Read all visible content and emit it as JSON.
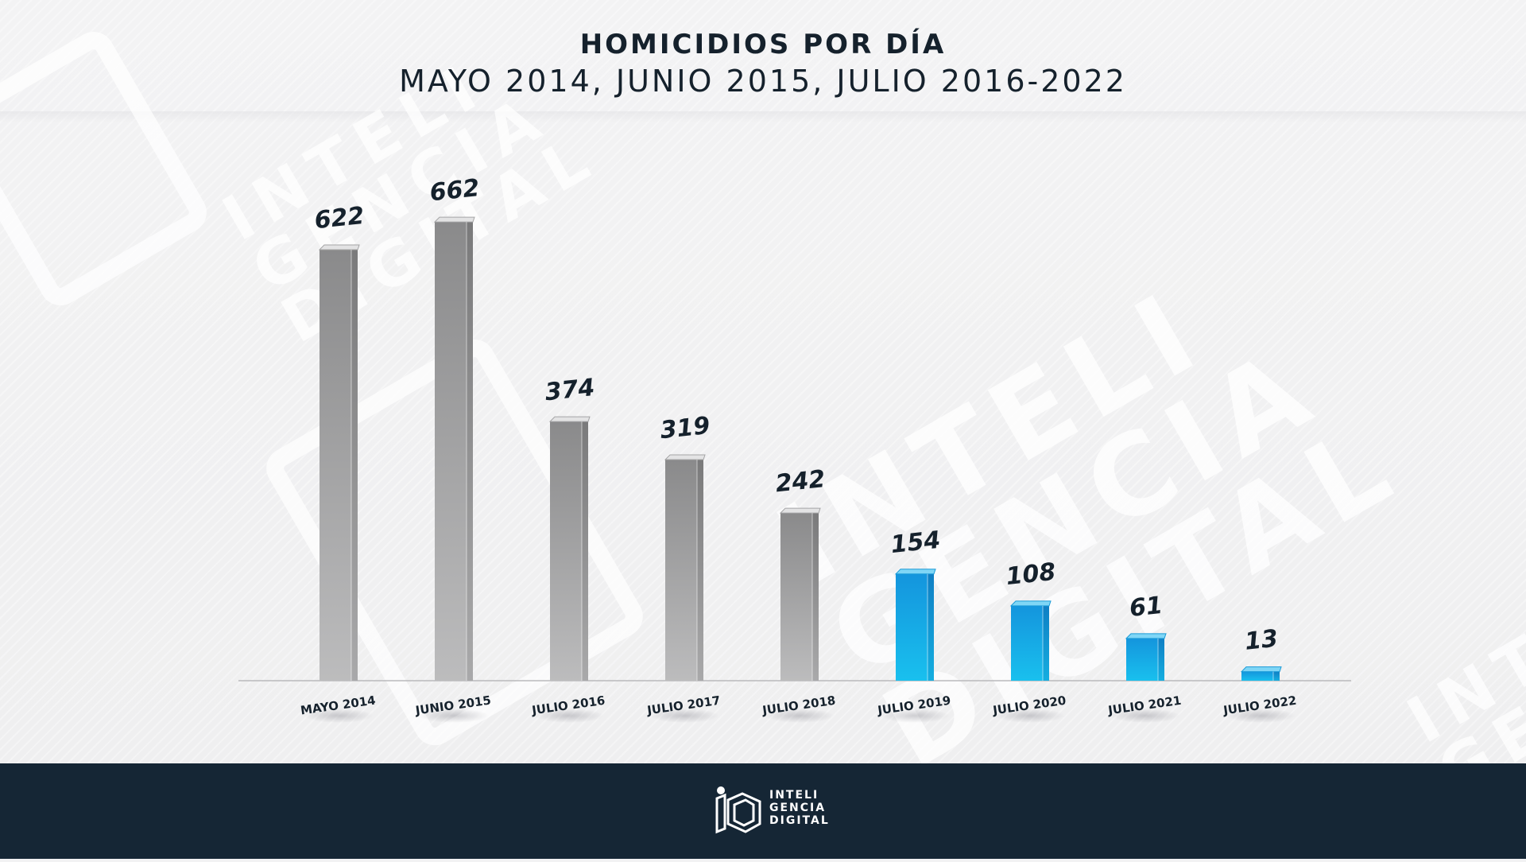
{
  "header": {
    "title": "HOMICIDIOS POR DÍA",
    "subtitle": "MAYO 2014, JUNIO 2015, JULIO 2016-2022"
  },
  "watermark": {
    "brand_lines": [
      "INTELI",
      "GENCIA",
      "DIGITAL"
    ]
  },
  "footer": {
    "logo_icon": "inteligencia-digital-logo-icon",
    "brand_lines": [
      "INTELI",
      "GENCIA",
      "DIGITAL"
    ]
  },
  "colors": {
    "gray_bar": "#8f8f90",
    "blue_bar": "#16a8e6",
    "footer_bg": "#152635",
    "text_dark": "#15212c"
  },
  "chart_data": {
    "type": "bar",
    "title": "HOMICIDIOS POR DÍA",
    "subtitle": "MAYO 2014, JUNIO 2015, JULIO 2016-2022",
    "categories": [
      "MAYO 2014",
      "JUNIO 2015",
      "JULIO 2016",
      "JULIO 2017",
      "JULIO 2018",
      "JULIO 2019",
      "JULIO 2020",
      "JULIO 2021",
      "JULIO 2022"
    ],
    "values": [
      622,
      662,
      374,
      319,
      242,
      154,
      108,
      61,
      13
    ],
    "bar_colors": [
      "gray",
      "gray",
      "gray",
      "gray",
      "gray",
      "blue",
      "blue",
      "blue",
      "blue"
    ],
    "data_labels": [
      "622",
      "662",
      "374",
      "319",
      "242",
      "154",
      "108",
      "61",
      "13"
    ],
    "ylim": [
      0,
      700
    ],
    "grid": false,
    "legend": "none"
  }
}
